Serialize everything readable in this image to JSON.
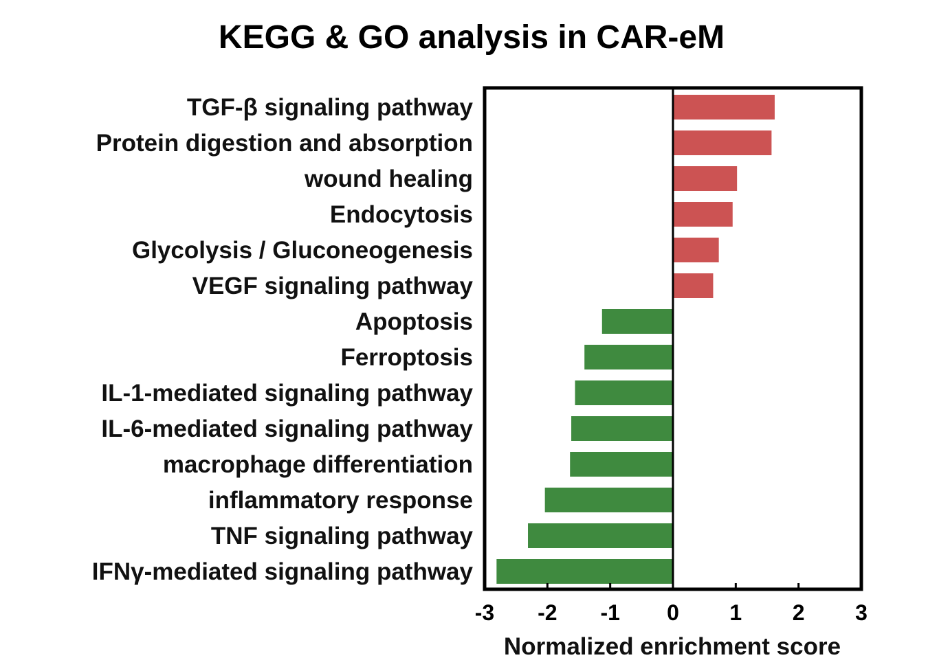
{
  "chart_data": {
    "type": "bar",
    "orientation": "horizontal",
    "title": "KEGG & GO analysis in CAR-eM",
    "xlabel": "Normalized enrichment score",
    "ylabel": "",
    "xlim": [
      -3,
      3
    ],
    "xticks": [
      "-3",
      "-2",
      "-1",
      "0",
      "1",
      "2",
      "3"
    ],
    "grid": false,
    "categories": [
      "TGF-β signaling pathway",
      "Protein digestion and absorption",
      "wound healing",
      "Endocytosis",
      "Glycolysis / Gluconeogenesis",
      "VEGF signaling pathway",
      "Apoptosis",
      "Ferroptosis",
      "IL-1-mediated signaling pathway",
      "IL-6-mediated signaling pathway",
      "macrophage differentiation",
      "inflammatory response",
      "TNF signaling pathway",
      "IFNγ-mediated signaling pathway"
    ],
    "values": [
      1.62,
      1.57,
      1.02,
      0.95,
      0.73,
      0.64,
      -1.13,
      -1.41,
      -1.56,
      -1.62,
      -1.64,
      -2.04,
      -2.31,
      -2.81
    ],
    "colors": {
      "positive": "#cc5353",
      "negative": "#3f8a3f"
    }
  }
}
